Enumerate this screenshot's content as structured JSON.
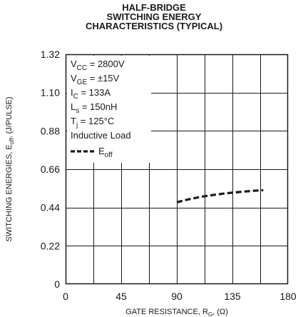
{
  "title_lines": [
    "HALF-BRIDGE",
    "SWITCHING ENERGY",
    "CHARACTERISTICS (TYPICAL)"
  ],
  "legend": {
    "conditions": [
      {
        "main": "V",
        "sub": "CC",
        "rest": " = 2800V"
      },
      {
        "main": "V",
        "sub": "GE",
        "rest": " = ±15V"
      },
      {
        "main": "I",
        "sub": "C",
        "rest": " = 133A"
      },
      {
        "main": "L",
        "sub": "s",
        "rest": " = 150nH"
      },
      {
        "main": "T",
        "sub": "j",
        "rest": " = 125°C"
      },
      {
        "main": "Inductive Load",
        "sub": "",
        "rest": ""
      }
    ],
    "series_label": {
      "main": "E",
      "sub": "off"
    }
  },
  "chart_data": {
    "type": "line",
    "xlabel": {
      "main": "GATE RESISTANCE, R",
      "sub": "G",
      "rest": ", (Ω)"
    },
    "ylabel": {
      "main": "SWITCHING ENERGIES, E",
      "sub": "off",
      "rest": ", (J/PULSE)"
    },
    "xlim": [
      0,
      180
    ],
    "ylim": [
      0,
      1.32
    ],
    "x_ticks": [
      0,
      45,
      90,
      135,
      180
    ],
    "y_ticks": [
      0,
      0.22,
      0.44,
      0.66,
      0.88,
      1.1,
      1.32
    ],
    "x_tick_labels": [
      "0",
      "45",
      "90",
      "135",
      "180"
    ],
    "y_tick_labels": [
      "0",
      "0.22",
      "0.44",
      "0.66",
      "0.88",
      "1.10",
      "1.32"
    ],
    "grid": true,
    "x_grid_step": 22.5,
    "series": [
      {
        "style": "dashed",
        "color": "#1a1a1a",
        "x": [
          90,
          100,
          110,
          120,
          130,
          140,
          150,
          160
        ],
        "y": [
          0.47,
          0.488,
          0.502,
          0.513,
          0.522,
          0.529,
          0.535,
          0.54
        ]
      }
    ]
  }
}
